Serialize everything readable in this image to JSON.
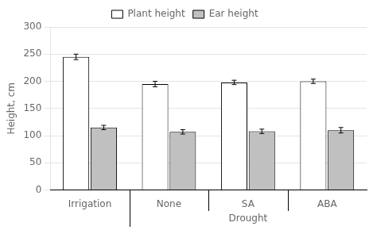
{
  "chart_data": {
    "type": "bar",
    "categories": [
      "Irrigation",
      "None",
      "SA",
      "ABA"
    ],
    "series": [
      {
        "name": "Plant height",
        "color": "#ffffff",
        "values": [
          245,
          195,
          198,
          200
        ],
        "errors": [
          5,
          5,
          4,
          4
        ]
      },
      {
        "name": "Ear height",
        "color": "#c0c0c0",
        "values": [
          115,
          107,
          108,
          110
        ],
        "errors": [
          4,
          4,
          4,
          5
        ]
      }
    ],
    "ylabel": "Height, cm",
    "ylim": [
      0,
      300
    ],
    "yticks": [
      0,
      50,
      100,
      150,
      200,
      250,
      300
    ],
    "grid": true,
    "legend": "top",
    "annotations": [
      {
        "text": "Drought",
        "categories": [
          "None",
          "SA",
          "ABA"
        ]
      }
    ]
  }
}
